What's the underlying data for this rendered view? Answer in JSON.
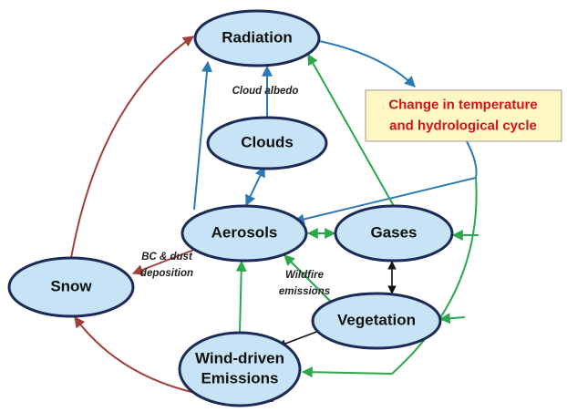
{
  "nodes": [
    {
      "label": [
        "Radiation"
      ]
    },
    {
      "label": [
        "Clouds"
      ]
    },
    {
      "label": [
        "Aerosols"
      ]
    },
    {
      "label": [
        "Gases"
      ]
    },
    {
      "label": [
        "Snow"
      ]
    },
    {
      "label": [
        "Vegetation"
      ]
    },
    {
      "label": [
        "Wind-driven",
        "Emissions"
      ]
    }
  ],
  "change_box": {
    "label": [
      "Change in temperature",
      "and hydrological cycle"
    ]
  },
  "edge_labels": [
    {
      "label": [
        "Cloud  albedo"
      ]
    },
    {
      "label": [
        "BC & dust",
        "deposition"
      ]
    },
    {
      "label": [
        "Wildfire",
        "emissions"
      ]
    }
  ]
}
